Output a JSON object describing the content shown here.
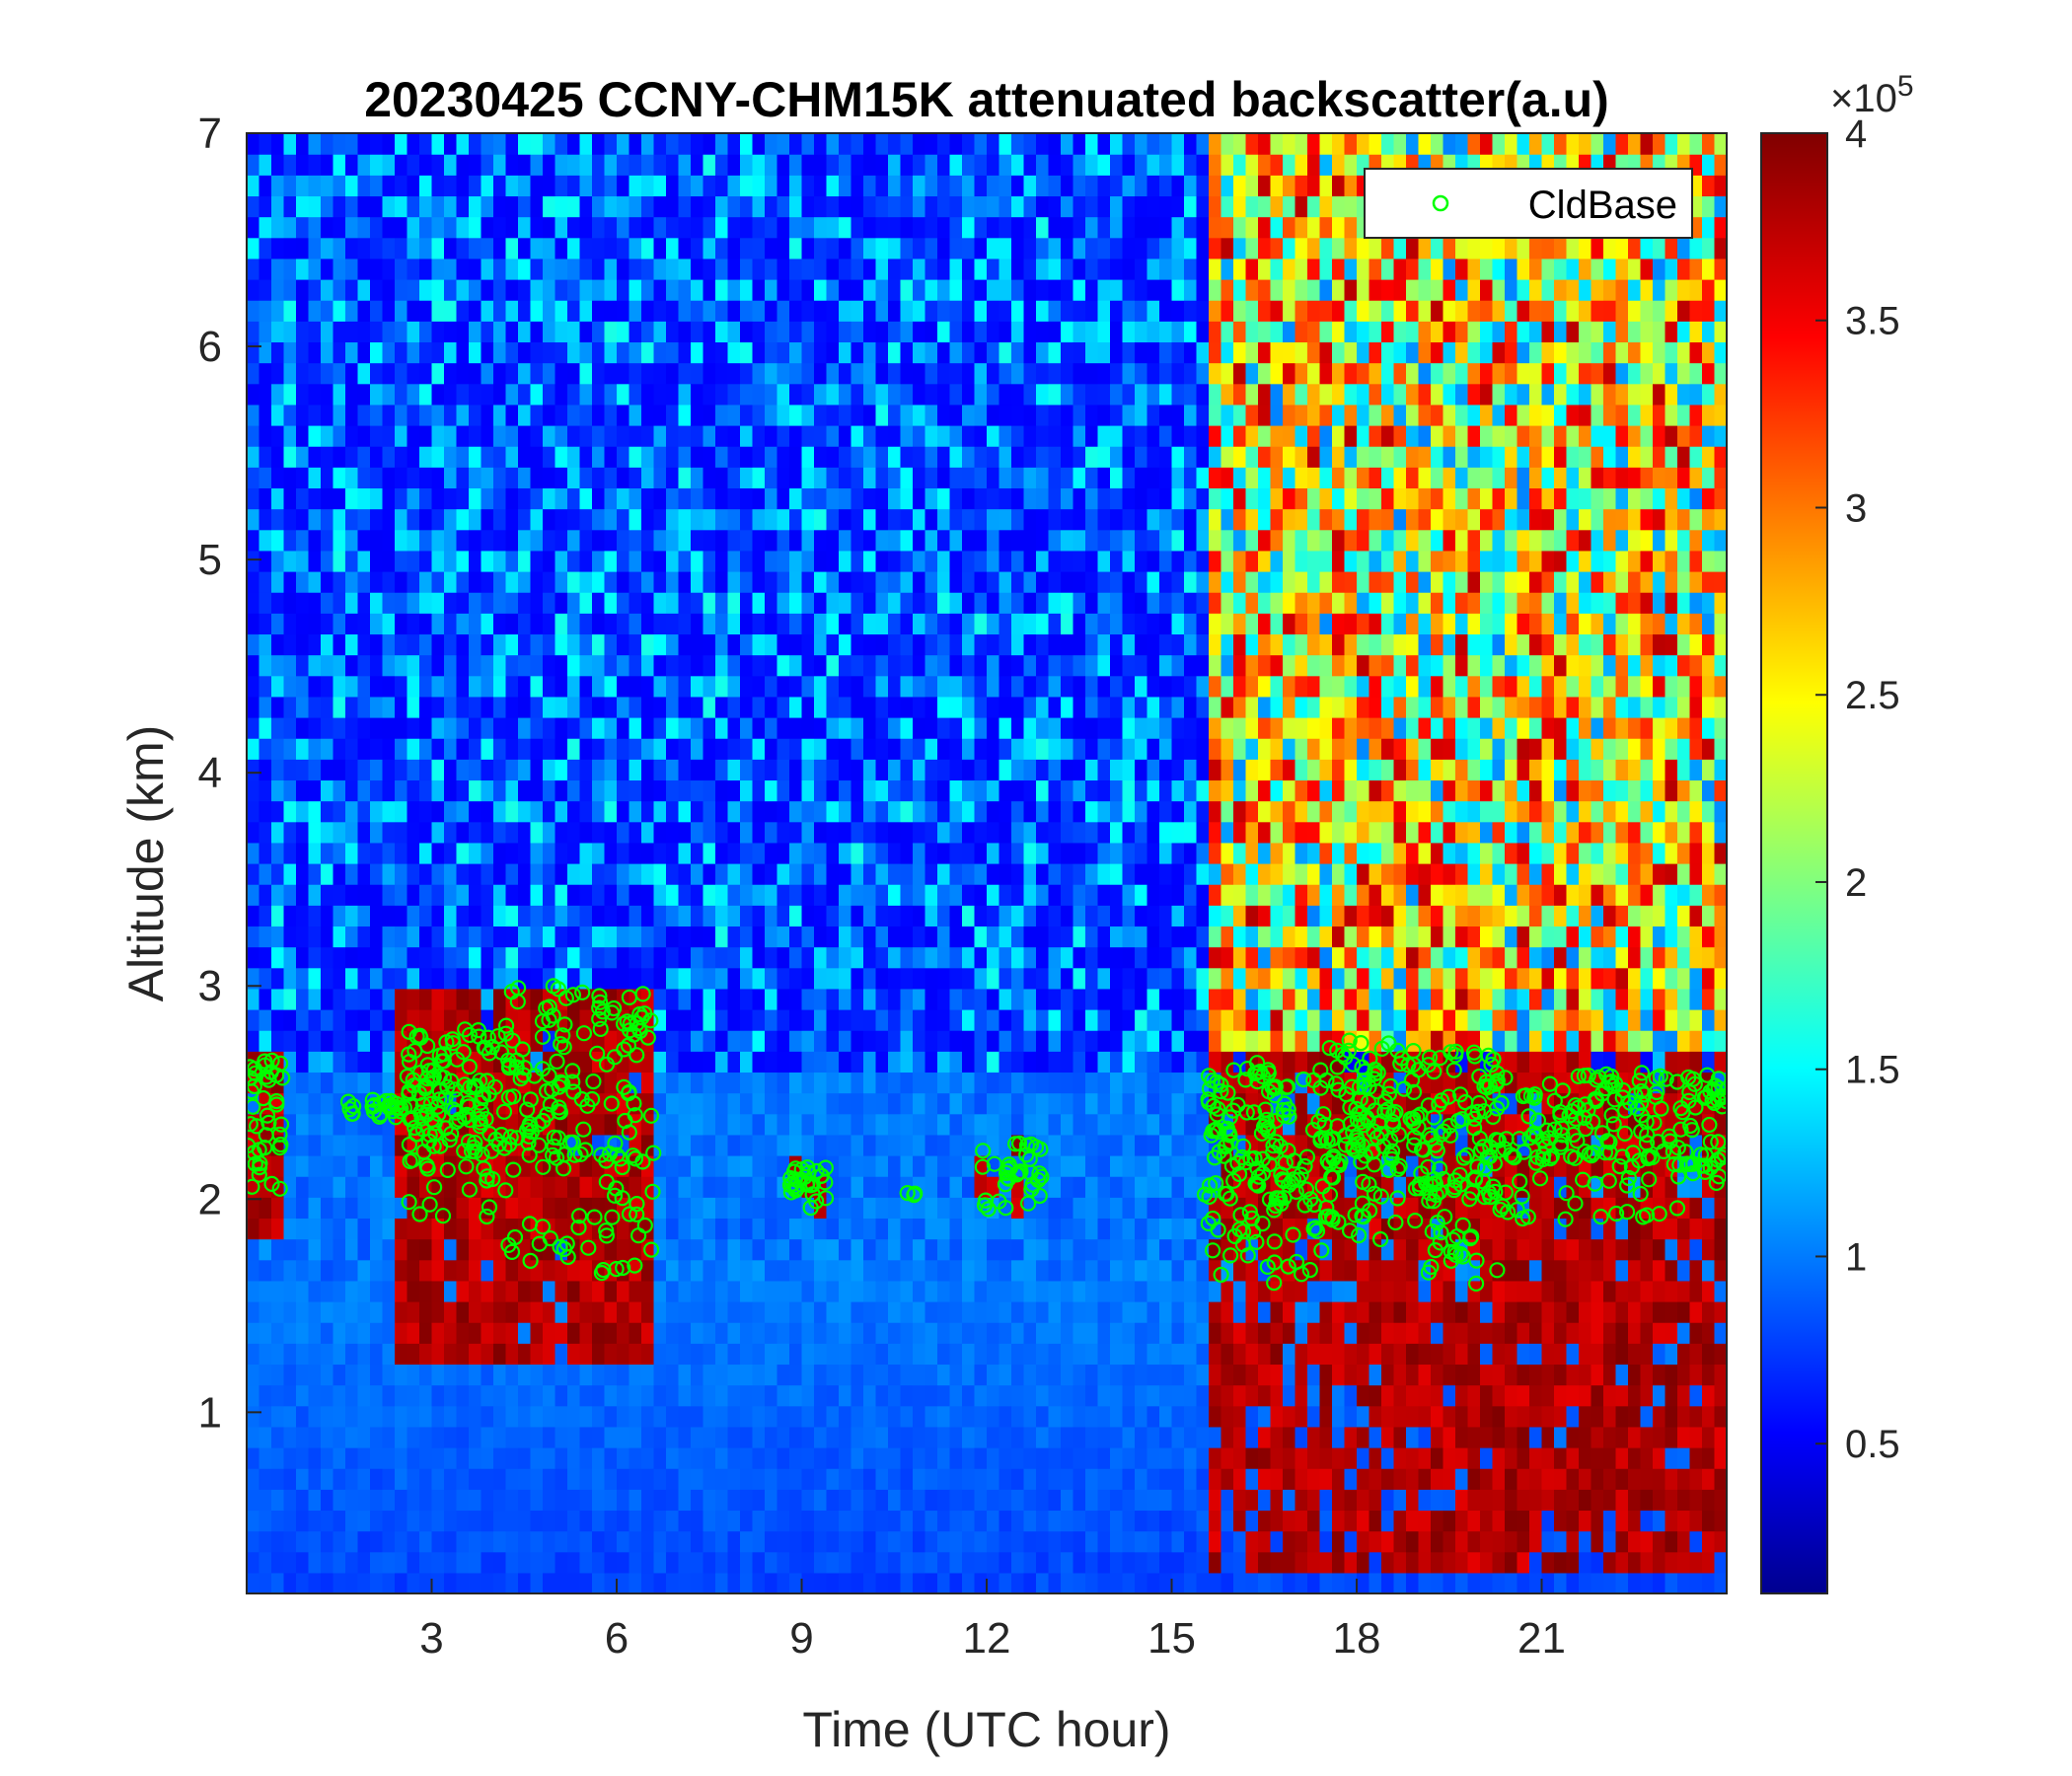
{
  "chart_data": {
    "type": "heatmap",
    "title": "20230425 CCNY-CHM15K attenuated backscatter(a.u)",
    "xlabel": "Time (UTC hour)",
    "ylabel": "Altitude (km)",
    "xlim": [
      0,
      24
    ],
    "ylim": [
      0.15,
      7
    ],
    "x_ticks": [
      3,
      6,
      9,
      12,
      15,
      18,
      21
    ],
    "y_ticks": [
      1,
      2,
      3,
      4,
      5,
      6,
      7
    ],
    "colormap": "jet",
    "colorbar": {
      "clim": [
        0.1,
        4
      ],
      "ticks": [
        0.5,
        1,
        1.5,
        2,
        2.5,
        3,
        3.5,
        4
      ],
      "tick_labels": [
        "0.5",
        "1",
        "1.5",
        "2",
        "2.5",
        "3",
        "3.5",
        "4"
      ],
      "exponent_base": "×10",
      "exponent_power": "5"
    },
    "legend": {
      "placement": "top-right",
      "entries": [
        {
          "name": "CldBase",
          "marker": "circle",
          "color": "#00ff00"
        }
      ]
    },
    "cloud_layers": [
      {
        "t0": 0.0,
        "t1": 0.5,
        "base_km": 1.8,
        "top_km": 2.7,
        "density": 0.9
      },
      {
        "t0": 2.5,
        "t1": 6.6,
        "base_km": 1.2,
        "top_km": 2.95,
        "density": 0.95
      },
      {
        "t0": 8.8,
        "t1": 9.4,
        "base_km": 1.9,
        "top_km": 2.2,
        "density": 0.4
      },
      {
        "t0": 11.9,
        "t1": 12.8,
        "base_km": 1.9,
        "top_km": 2.3,
        "density": 0.3
      },
      {
        "t0": 15.6,
        "t1": 24.0,
        "base_km": 0.2,
        "top_km": 2.7,
        "density": 0.85
      }
    ],
    "cloud_base_segments": [
      {
        "t0": 0.0,
        "t1": 0.6,
        "alt_min_km": 2.0,
        "alt_max_km": 2.65,
        "count": 40
      },
      {
        "t0": 1.6,
        "t1": 2.6,
        "alt_min_km": 2.38,
        "alt_max_km": 2.47,
        "count": 25
      },
      {
        "t0": 2.6,
        "t1": 4.2,
        "alt_min_km": 1.9,
        "alt_max_km": 2.8,
        "count": 140
      },
      {
        "t0": 4.2,
        "t1": 6.6,
        "alt_min_km": 1.65,
        "alt_max_km": 3.0,
        "count": 170
      },
      {
        "t0": 8.8,
        "t1": 9.4,
        "alt_min_km": 1.95,
        "alt_max_km": 2.15,
        "count": 30
      },
      {
        "t0": 10.7,
        "t1": 10.9,
        "alt_min_km": 1.98,
        "alt_max_km": 2.03,
        "count": 3
      },
      {
        "t0": 11.9,
        "t1": 12.9,
        "alt_min_km": 1.95,
        "alt_max_km": 2.28,
        "count": 35
      },
      {
        "t0": 15.5,
        "t1": 17.5,
        "alt_min_km": 1.6,
        "alt_max_km": 2.65,
        "count": 160
      },
      {
        "t0": 17.5,
        "t1": 19.0,
        "alt_min_km": 1.8,
        "alt_max_km": 2.75,
        "count": 130
      },
      {
        "t0": 19.0,
        "t1": 20.3,
        "alt_min_km": 1.6,
        "alt_max_km": 2.7,
        "count": 120
      },
      {
        "t0": 20.3,
        "t1": 24.0,
        "alt_min_km": 1.9,
        "alt_max_km": 2.6,
        "count": 200
      }
    ]
  }
}
